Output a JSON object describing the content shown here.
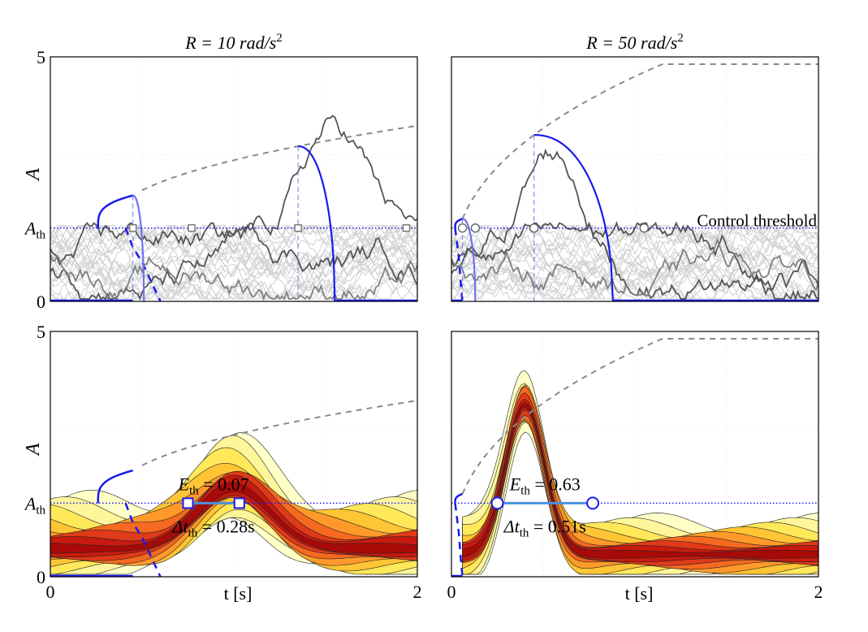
{
  "chart_data": [
    {
      "id": "top-left",
      "type": "line",
      "title": "R = 10 rad/s²",
      "title_prefix": "R = 10 rad/s",
      "title_sup": "2",
      "xlabel": "",
      "ylabel": "A",
      "xlim": [
        0,
        2
      ],
      "ylim": [
        0,
        5
      ],
      "yticks": [
        0,
        5
      ],
      "ytick_labels": [
        "0",
        "5"
      ],
      "threshold": 1.5,
      "threshold_label": "A_th",
      "threshold_label_main": "A",
      "threshold_label_sub": "th",
      "upper_curve": {
        "R": 10,
        "x_start": 0.5
      },
      "lower_branch": {
        "x": [
          0.41,
          0.45,
          0.5,
          0.55,
          0.6
        ],
        "y": [
          1.5,
          1.1,
          0.8,
          0.4,
          0.0
        ]
      },
      "vertical_marks": [
        0.45,
        1.35
      ],
      "threshold_crossings": [
        0.45,
        0.77,
        1.35,
        1.94
      ],
      "marker_shape": "square",
      "annotation": ""
    },
    {
      "id": "top-right",
      "type": "line",
      "title": "R = 50 rad/s²",
      "title_prefix": "R = 50 rad/s",
      "title_sup": "2",
      "xlabel": "",
      "ylabel": "",
      "xlim": [
        0,
        2
      ],
      "ylim": [
        0,
        5
      ],
      "yticks": [],
      "ytick_labels": [],
      "threshold": 1.5,
      "threshold_label": "",
      "threshold_label_main": "",
      "threshold_label_sub": "",
      "upper_curve": {
        "R": 50,
        "x_start": 0.06
      },
      "lower_branch": {
        "x": [
          0.02,
          0.04,
          0.05,
          0.06
        ],
        "y": [
          1.5,
          0.9,
          0.4,
          0.0
        ]
      },
      "vertical_marks": [
        0.06,
        0.45
      ],
      "threshold_crossings": [
        0.06,
        0.13,
        0.45,
        1.05
      ],
      "marker_shape": "circle",
      "annotation": "Control threshold"
    },
    {
      "id": "bottom-left",
      "type": "heatmap",
      "title": "",
      "xlabel": "t [s]",
      "ylabel": "A",
      "xlim": [
        0,
        2
      ],
      "ylim": [
        0,
        5
      ],
      "xticks": [
        0,
        2
      ],
      "xtick_labels": [
        "0",
        "2"
      ],
      "yticks": [
        0,
        5
      ],
      "ytick_labels": [
        "0",
        "5"
      ],
      "threshold": 1.5,
      "threshold_label": "A_th",
      "threshold_label_main": "A",
      "threshold_label_sub": "th",
      "upper_curve": {
        "R": 10,
        "x_start": 0.5
      },
      "lower_branch": {
        "x": [
          0.41,
          0.45,
          0.5,
          0.55,
          0.6
        ],
        "y": [
          1.5,
          1.1,
          0.8,
          0.4,
          0.0
        ]
      },
      "interval": {
        "x_start": 0.75,
        "x_end": 1.03,
        "y": 1.5,
        "marker_shape": "square"
      },
      "E_th": "0.07",
      "dt_th": "0.28s",
      "E_th_main": "E",
      "dt_th_main": "Δt",
      "sub_th": "th",
      "eq": " = ",
      "density_peak_time": 1.0
    },
    {
      "id": "bottom-right",
      "type": "heatmap",
      "title": "",
      "xlabel": "t [s]",
      "ylabel": "",
      "xlim": [
        0,
        2
      ],
      "ylim": [
        0,
        5
      ],
      "xticks": [
        0,
        2
      ],
      "xtick_labels": [
        "0",
        "2"
      ],
      "yticks": [],
      "ytick_labels": [],
      "threshold": 1.5,
      "threshold_label": "",
      "threshold_label_main": "",
      "threshold_label_sub": "",
      "upper_curve": {
        "R": 50,
        "x_start": 0.06
      },
      "lower_branch": {
        "x": [
          0.02,
          0.04,
          0.05,
          0.06
        ],
        "y": [
          1.5,
          0.9,
          0.4,
          0.0
        ]
      },
      "interval": {
        "x_start": 0.25,
        "x_end": 0.77,
        "y": 1.5,
        "marker_shape": "circle"
      },
      "E_th": "0.63",
      "dt_th": "0.51s",
      "E_th_main": "E",
      "dt_th_main": "Δt",
      "sub_th": "th",
      "eq": " = ",
      "density_peak_time": 0.4
    }
  ],
  "colors": {
    "threshold": "#1a1aff",
    "curve_blue": "#1a1aee",
    "curve_blue_light": "#6f72f0",
    "dashed_gray": "#8a8a8a",
    "dashed_gray_light": "#dcdcdc",
    "trace_gray": "#cfcfcf",
    "trace_dark": "#555555",
    "trace_pink": "#ffb0b0",
    "interval": "#4a90e2",
    "heat": [
      "#ffffc8",
      "#fff59a",
      "#ffe85a",
      "#ffc534",
      "#ff9a2a",
      "#f56a20",
      "#e03a18",
      "#c81a10",
      "#a80a08"
    ]
  }
}
